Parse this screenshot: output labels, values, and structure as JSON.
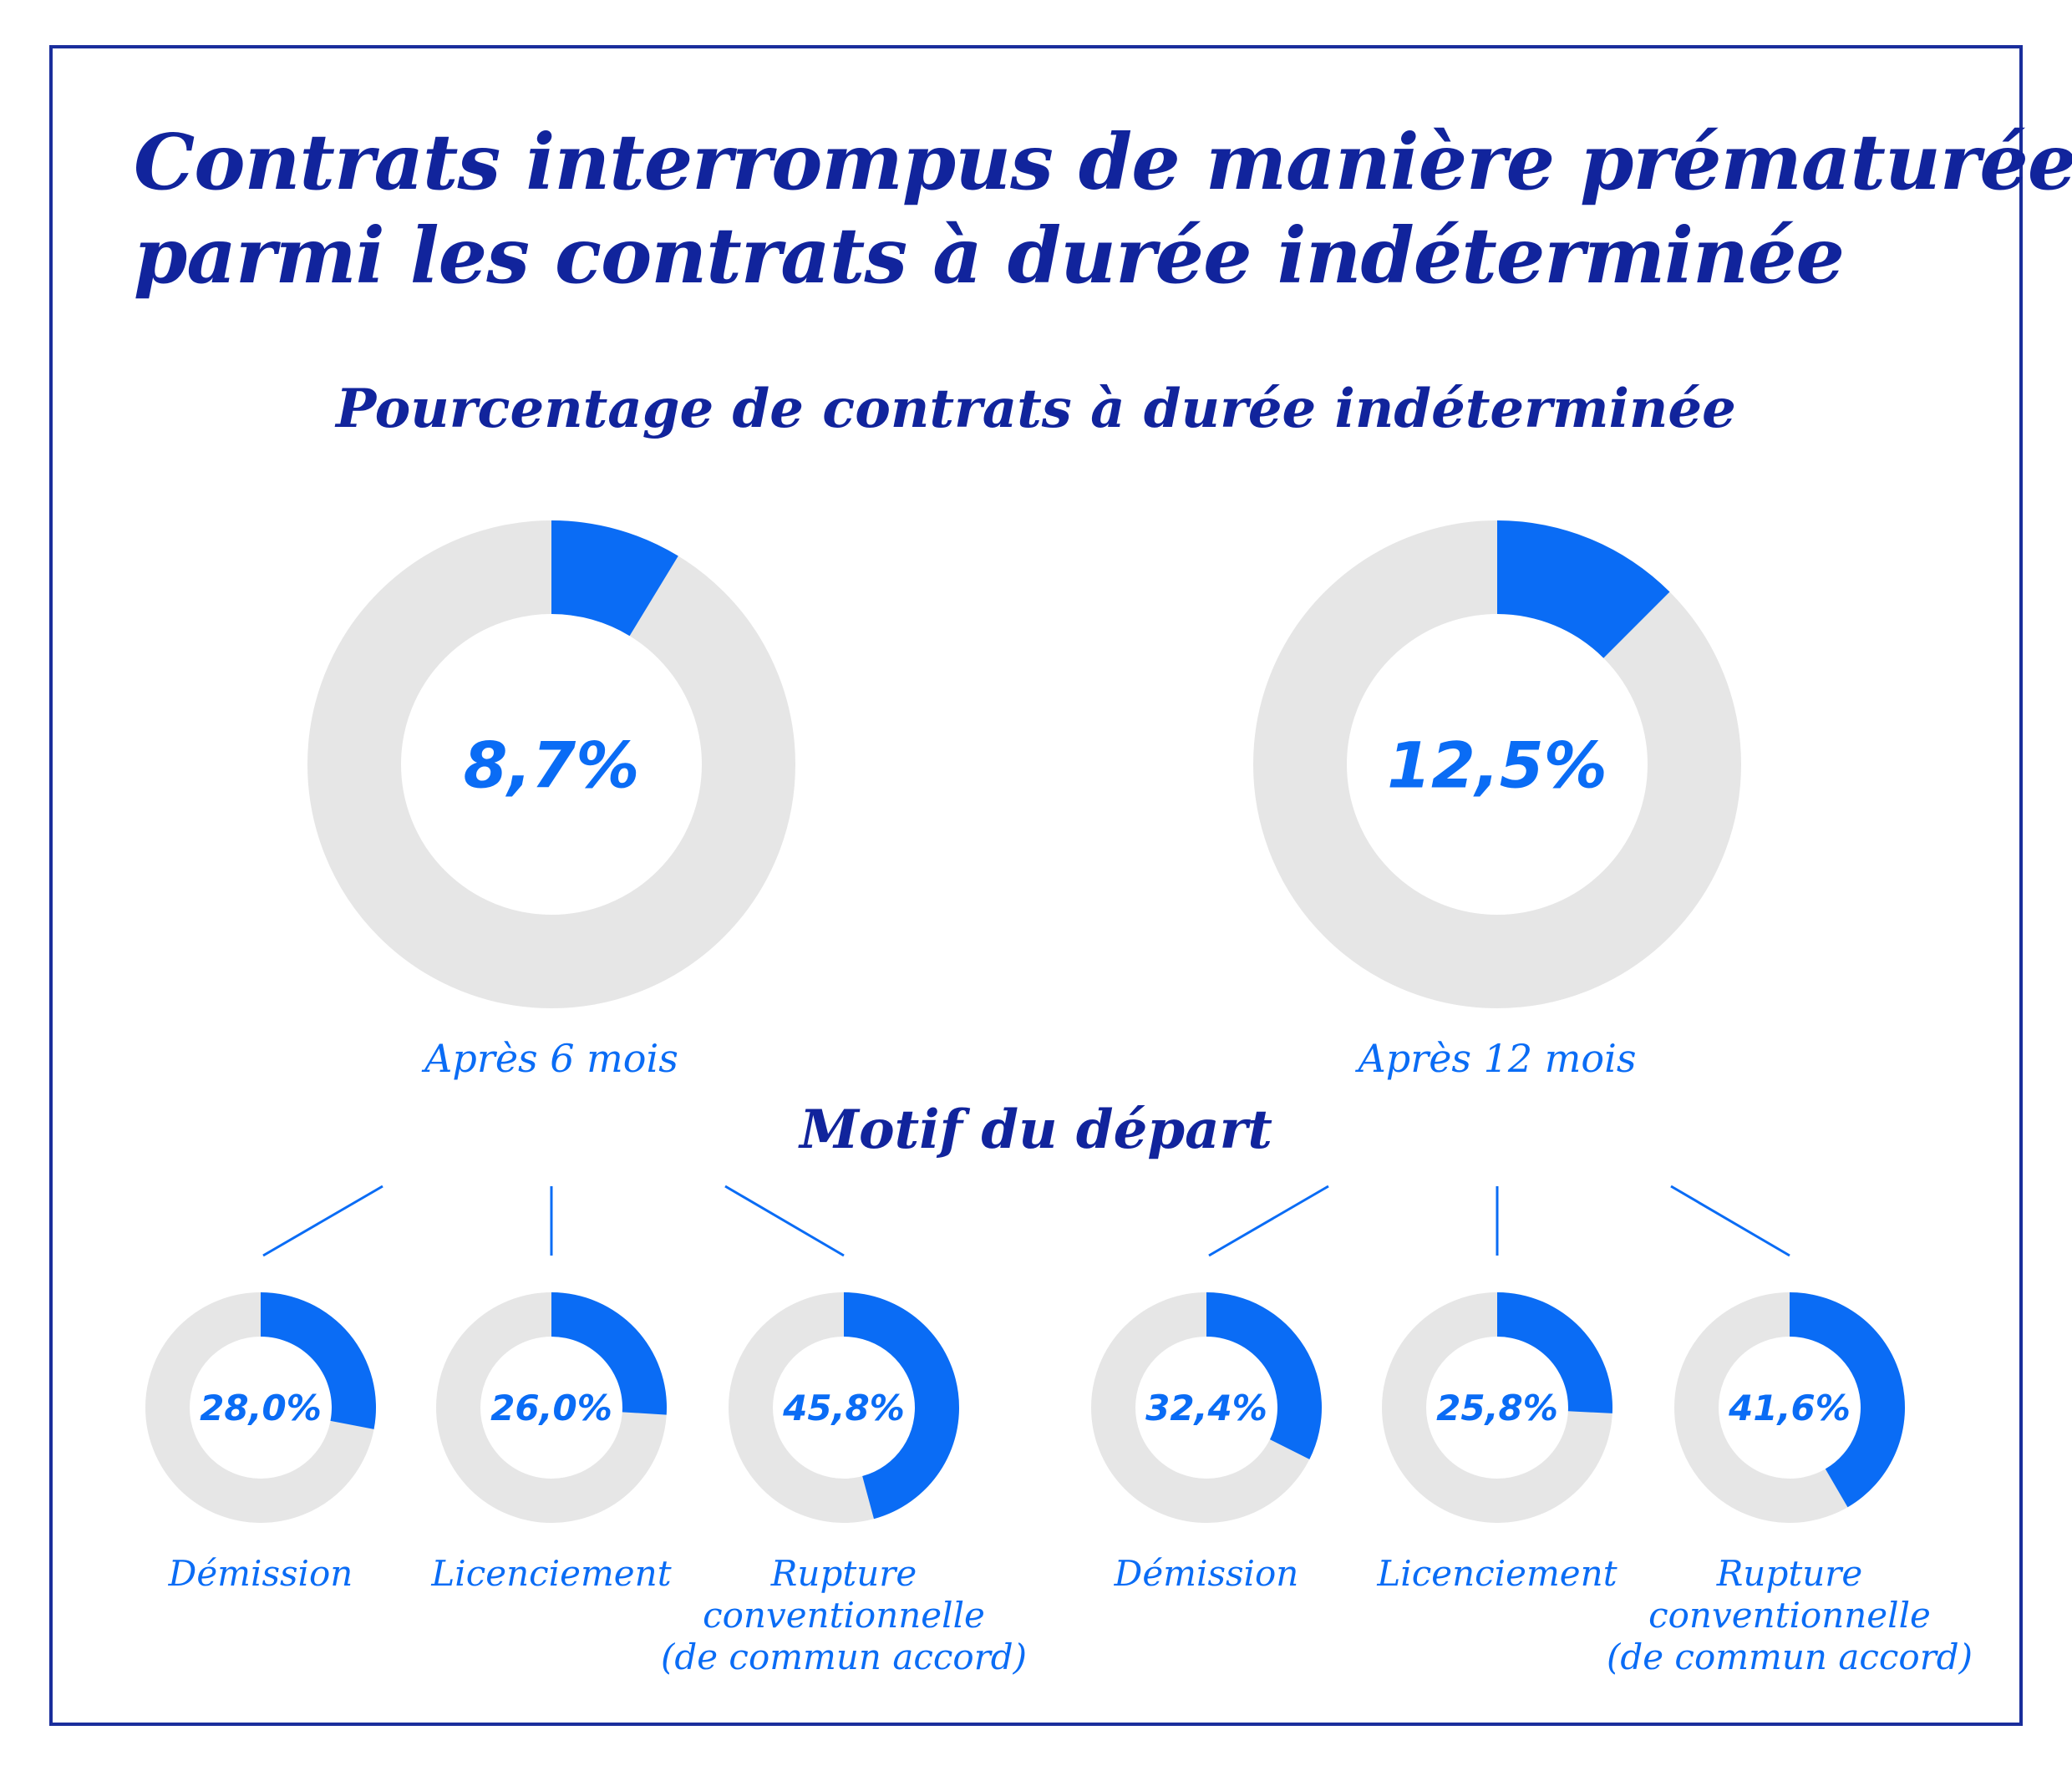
{
  "title_line1": "Contrats interrompus de manière prématurée",
  "title_line2": "parmi les contrats à durée indéterminée",
  "subtitle": "Pourcentage de contrats à durée indéterminée",
  "motif_title": "Motif du départ",
  "colors": {
    "accent": "#0a6cf5",
    "track": "#e6e6e6",
    "title": "#11249c",
    "border": "#1a2e9c"
  },
  "chart_data": [
    {
      "type": "donut",
      "label": "Après 6 mois",
      "value": 8.7,
      "value_label": "8,7%",
      "breakdown": [
        {
          "label_lines": [
            "Démission"
          ],
          "value": 28.0,
          "value_label": "28,0%"
        },
        {
          "label_lines": [
            "Licenciement"
          ],
          "value": 26.0,
          "value_label": "26,0%"
        },
        {
          "label_lines": [
            "Rupture",
            "conventionnelle",
            "(de commun accord)"
          ],
          "value": 45.8,
          "value_label": "45,8%"
        }
      ]
    },
    {
      "type": "donut",
      "label": "Après 12 mois",
      "value": 12.5,
      "value_label": "12,5%",
      "breakdown": [
        {
          "label_lines": [
            "Démission"
          ],
          "value": 32.4,
          "value_label": "32,4%"
        },
        {
          "label_lines": [
            "Licenciement"
          ],
          "value": 25.8,
          "value_label": "25,8%"
        },
        {
          "label_lines": [
            "Rupture",
            "conventionnelle",
            "(de commun accord)"
          ],
          "value": 41.6,
          "value_label": "41,6%"
        }
      ]
    }
  ]
}
